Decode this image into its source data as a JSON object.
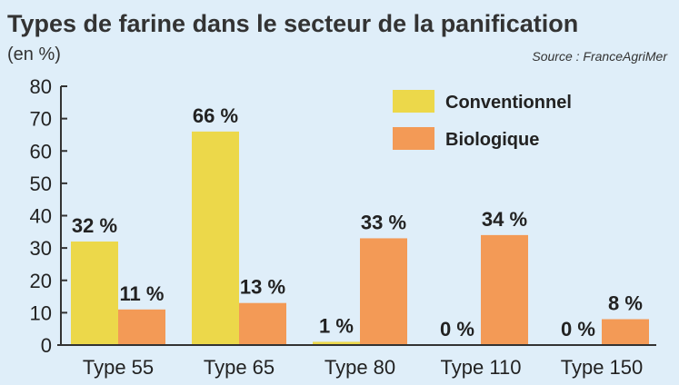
{
  "chart_data": {
    "type": "bar",
    "title": "Types de farine dans le secteur de la panification",
    "unit_label": "(en %)",
    "source": "Source : FranceAgriMer",
    "categories": [
      "Type 55",
      "Type 65",
      "Type 80",
      "Type 110",
      "Type 150"
    ],
    "series": [
      {
        "name": "Conventionnel",
        "color": "#ecd84a",
        "values": [
          32,
          66,
          1,
          0,
          0
        ],
        "labels": [
          "32 %",
          "66 %",
          "1 %",
          "0 %",
          "0 %"
        ]
      },
      {
        "name": "Biologique",
        "color": "#f39a56",
        "values": [
          11,
          13,
          33,
          34,
          8
        ],
        "labels": [
          "11 %",
          "13 %",
          "33 %",
          "34 %",
          "8 %"
        ]
      }
    ],
    "ylim": [
      0,
      80
    ],
    "yticks": [
      0,
      10,
      20,
      30,
      40,
      50,
      60,
      70,
      80
    ],
    "grid": false,
    "legend": "top-right"
  }
}
